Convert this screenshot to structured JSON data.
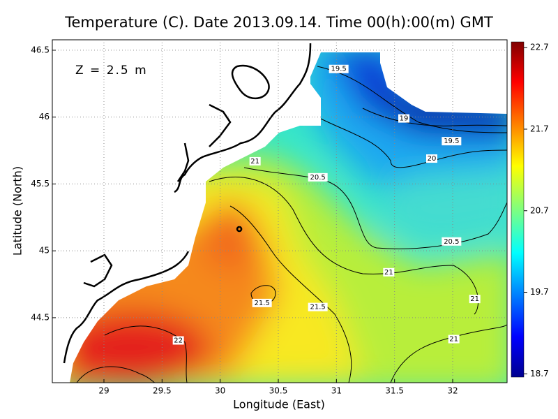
{
  "map": {
    "title": "Temperature (C). Date 2013.09.14. Time 00(h):00(m) GMT",
    "annotation": "Z = 2.5 m",
    "x_label": "Longitude (East)",
    "y_label": "Latitude (North)",
    "xlim": [
      28.556,
      32.468
    ],
    "ylim": [
      44.014,
      46.578
    ],
    "xticks": [
      29,
      29.5,
      30,
      30.5,
      31,
      31.5,
      32
    ],
    "yticks": [
      44.5,
      45,
      45.5,
      46,
      46.5
    ],
    "grid": true,
    "colorbar": {
      "lim": [
        18.66,
        22.77
      ],
      "ticks": [
        18.7,
        19.7,
        20.7,
        21.7,
        22.7
      ]
    },
    "contour_labels": [
      {
        "value": 19.5,
        "lon": 31.02,
        "lat": 46.36
      },
      {
        "value": 19,
        "lon": 31.58,
        "lat": 45.99
      },
      {
        "value": 19.5,
        "lon": 31.99,
        "lat": 45.82
      },
      {
        "value": 20,
        "lon": 31.82,
        "lat": 45.69
      },
      {
        "value": 20.5,
        "lon": 30.84,
        "lat": 45.55
      },
      {
        "value": 21,
        "lon": 30.3,
        "lat": 45.67
      },
      {
        "value": 20.5,
        "lon": 31.99,
        "lat": 45.07
      },
      {
        "value": 21,
        "lon": 31.45,
        "lat": 44.84
      },
      {
        "value": 21,
        "lon": 32.19,
        "lat": 44.64
      },
      {
        "value": 21.5,
        "lon": 30.36,
        "lat": 44.61
      },
      {
        "value": 21.5,
        "lon": 30.84,
        "lat": 44.58
      },
      {
        "value": 21,
        "lon": 32.01,
        "lat": 44.34
      },
      {
        "value": 22,
        "lon": 29.64,
        "lat": 44.33
      }
    ]
  }
}
